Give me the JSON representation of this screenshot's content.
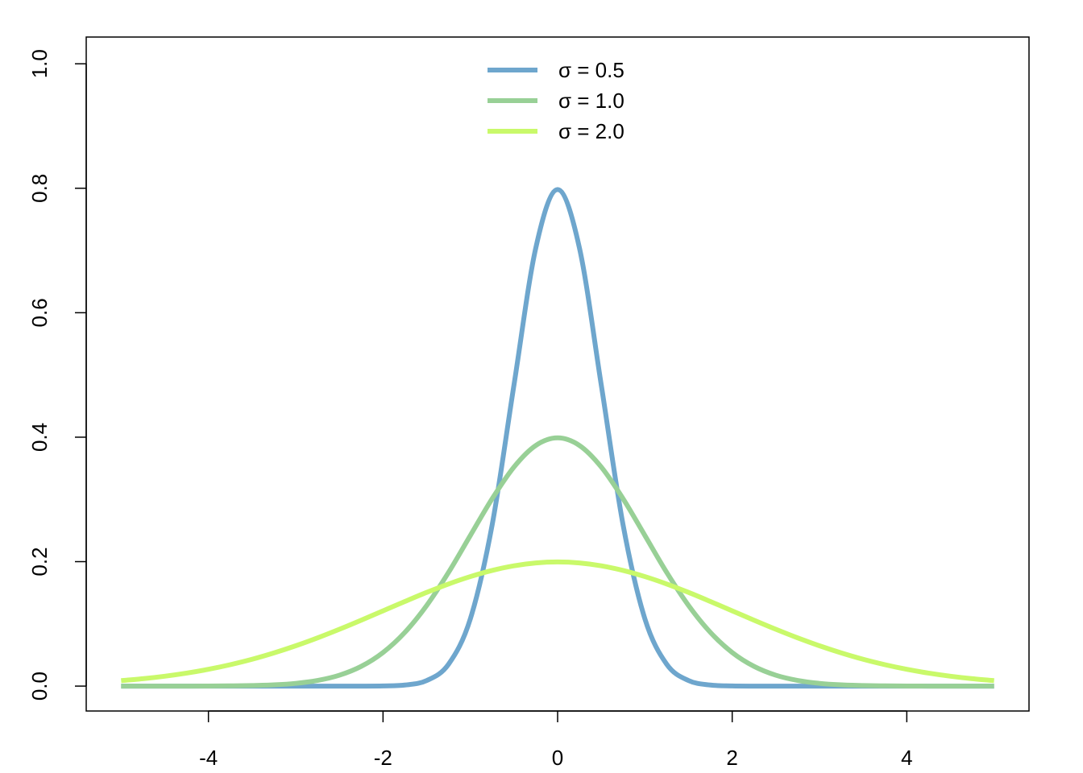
{
  "chart_data": {
    "type": "line",
    "x": [
      -5,
      -4.75,
      -4.5,
      -4.25,
      -4,
      -3.75,
      -3.5,
      -3.25,
      -3,
      -2.75,
      -2.5,
      -2.25,
      -2,
      -1.75,
      -1.5,
      -1.25,
      -1,
      -0.75,
      -0.5,
      -0.25,
      0,
      0.25,
      0.5,
      0.75,
      1,
      1.25,
      1.5,
      1.75,
      2,
      2.25,
      2.5,
      2.75,
      3,
      3.25,
      3.5,
      3.75,
      4,
      4.25,
      4.5,
      4.75,
      5
    ],
    "series": [
      {
        "name": "σ = 0.5",
        "color": "#6ea6cd",
        "values": [
          0,
          0,
          0,
          0,
          0,
          0,
          0,
          0,
          0,
          0,
          0,
          0,
          0.0003,
          0.0017,
          0.0089,
          0.0351,
          0.108,
          0.259,
          0.4839,
          0.7041,
          0.7979,
          0.7041,
          0.4839,
          0.259,
          0.108,
          0.0351,
          0.0089,
          0.0017,
          0.0003,
          0,
          0,
          0,
          0,
          0,
          0,
          0,
          0,
          0,
          0,
          0,
          0
        ]
      },
      {
        "name": "σ = 1.0",
        "color": "#98d096",
        "values": [
          0,
          0,
          0,
          0,
          0.0001,
          0.0004,
          0.0009,
          0.002,
          0.0044,
          0.0091,
          0.0175,
          0.0317,
          0.054,
          0.0863,
          0.1295,
          0.1826,
          0.242,
          0.3011,
          0.3521,
          0.3867,
          0.3989,
          0.3867,
          0.3521,
          0.3011,
          0.242,
          0.1826,
          0.1295,
          0.0863,
          0.054,
          0.0317,
          0.0175,
          0.0091,
          0.0044,
          0.002,
          0.0009,
          0.0004,
          0.0001,
          0,
          0,
          0,
          0
        ]
      },
      {
        "name": "σ = 2.0",
        "color": "#c9f96a",
        "values": [
          0.0088,
          0.0119,
          0.0159,
          0.0209,
          0.027,
          0.0344,
          0.0431,
          0.0533,
          0.0648,
          0.0775,
          0.0913,
          0.1059,
          0.121,
          0.136,
          0.1506,
          0.1641,
          0.176,
          0.1859,
          0.1933,
          0.1979,
          0.1995,
          0.1979,
          0.1933,
          0.1859,
          0.176,
          0.1641,
          0.1506,
          0.136,
          0.121,
          0.1059,
          0.0913,
          0.0775,
          0.0648,
          0.0533,
          0.0431,
          0.0344,
          0.027,
          0.0209,
          0.0159,
          0.0119,
          0.0088
        ]
      }
    ],
    "xlim": [
      -5.4,
      5.4
    ],
    "xticks": [
      -4,
      -2,
      0,
      2,
      4
    ],
    "ylim": [
      -0.04,
      1.043
    ],
    "yticks": [
      {
        "value": 0,
        "label": "0.0"
      },
      0.2,
      0.4,
      0.6,
      0.8,
      {
        "value": 1,
        "label": "1.0"
      }
    ],
    "grid": false,
    "legend": "top"
  }
}
